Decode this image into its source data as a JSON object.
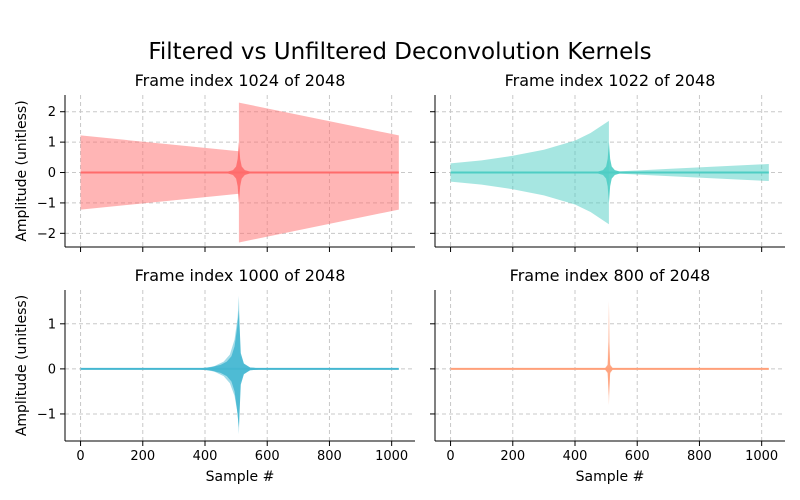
{
  "figure": {
    "title": "Filtered vs Unfiltered Deconvolution Kernels"
  },
  "chart_data": [
    {
      "type": "area",
      "title": "Frame index 1024 of 2048",
      "xlabel": "",
      "ylabel": "Amplitude (unitless)",
      "xlim": [
        -50,
        1075
      ],
      "ylim": [
        -2.45,
        2.55
      ],
      "xticks": [
        0,
        200,
        400,
        600,
        800,
        1000
      ],
      "yticks": [
        -2,
        -1,
        0,
        1,
        2
      ],
      "show_xticklabels": false,
      "show_yticklabels": true,
      "grid": true,
      "color": "#ff6b6b",
      "series": [
        {
          "role": "envelope",
          "x": [
            0,
            509,
            509,
            1023
          ],
          "upper": [
            1.22,
            0.7,
            2.3,
            1.22
          ],
          "lower": [
            -1.22,
            -0.7,
            -2.3,
            -1.22
          ]
        },
        {
          "role": "kernel",
          "x": [
            0,
            400,
            470,
            490,
            500,
            505,
            509,
            513,
            518,
            528,
            548,
            620,
            1023
          ],
          "amplitude": [
            0,
            0,
            0.02,
            0.08,
            0.2,
            0.45,
            1.0,
            0.45,
            0.2,
            0.08,
            0.02,
            0,
            0
          ]
        }
      ]
    },
    {
      "type": "area",
      "title": "Frame index 1022 of 2048",
      "xlabel": "",
      "ylabel": "",
      "xlim": [
        -50,
        1075
      ],
      "ylim": [
        -2.45,
        2.55
      ],
      "xticks": [
        0,
        200,
        400,
        600,
        800,
        1000
      ],
      "yticks": [
        -2,
        -1,
        0,
        1,
        2
      ],
      "show_xticklabels": false,
      "show_yticklabels": false,
      "grid": true,
      "color": "#4ecdc4",
      "series": [
        {
          "role": "envelope",
          "x": [
            0,
            100,
            200,
            300,
            400,
            450,
            509,
            509,
            700,
            1023
          ],
          "upper": [
            0.3,
            0.4,
            0.55,
            0.75,
            1.05,
            1.3,
            1.7,
            0.02,
            0.12,
            0.28
          ],
          "lower": [
            -0.3,
            -0.4,
            -0.55,
            -0.75,
            -1.05,
            -1.3,
            -1.7,
            -0.02,
            -0.12,
            -0.28
          ]
        },
        {
          "role": "kernel",
          "x": [
            0,
            400,
            470,
            490,
            500,
            505,
            509,
            513,
            518,
            528,
            548,
            620,
            1023
          ],
          "amplitude": [
            0,
            0,
            0.02,
            0.08,
            0.2,
            0.45,
            1.0,
            0.45,
            0.2,
            0.08,
            0.02,
            0,
            0
          ]
        }
      ]
    },
    {
      "type": "area",
      "title": "Frame index 1000 of 2048",
      "xlabel": "Sample #",
      "ylabel": "Amplitude (unitless)",
      "xlim": [
        -50,
        1075
      ],
      "ylim": [
        -1.6,
        1.75
      ],
      "xticks": [
        0,
        200,
        400,
        600,
        800,
        1000
      ],
      "yticks": [
        -1,
        0,
        1
      ],
      "show_xticklabels": true,
      "show_yticklabels": true,
      "grid": true,
      "color": "#45b7d1",
      "series": [
        {
          "role": "envelope",
          "x": [
            0,
            350,
            400,
            430,
            460,
            480,
            495,
            505,
            509,
            513,
            525,
            545,
            600,
            1023
          ],
          "upper": [
            0,
            0,
            0.02,
            0.06,
            0.16,
            0.32,
            0.65,
            1.15,
            1.62,
            0.3,
            0.1,
            0.03,
            0,
            0
          ],
          "lower": [
            0,
            0,
            -0.02,
            -0.06,
            -0.16,
            -0.32,
            -0.6,
            -1.0,
            -1.45,
            -0.3,
            -0.1,
            -0.03,
            0,
            0
          ]
        },
        {
          "role": "kernel",
          "x": [
            0,
            380,
            420,
            450,
            470,
            485,
            495,
            503,
            509,
            515,
            525,
            545,
            600,
            1023
          ],
          "amplitude": [
            0,
            0.01,
            0.04,
            0.09,
            0.16,
            0.28,
            0.5,
            0.9,
            1.3,
            0.35,
            0.12,
            0.03,
            0,
            0
          ]
        }
      ]
    },
    {
      "type": "area",
      "title": "Frame index 800 of 2048",
      "xlabel": "Sample #",
      "ylabel": "",
      "xlim": [
        -50,
        1075
      ],
      "ylim": [
        -1.6,
        1.75
      ],
      "xticks": [
        0,
        200,
        400,
        600,
        800,
        1000
      ],
      "yticks": [
        -1,
        0,
        1
      ],
      "show_xticklabels": true,
      "show_yticklabels": false,
      "grid": true,
      "color": "#ffa07a",
      "series": [
        {
          "role": "envelope",
          "x": [
            0,
            495,
            505,
            509,
            513,
            523,
            1023
          ],
          "upper": [
            0,
            0,
            0.1,
            1.5,
            0.1,
            0,
            0
          ],
          "lower": [
            0,
            0,
            -0.1,
            -0.8,
            -0.1,
            0,
            0
          ]
        },
        {
          "role": "kernel",
          "x": [
            0,
            495,
            505,
            509,
            513,
            523,
            1023
          ],
          "amplitude": [
            0,
            0,
            0.08,
            0.6,
            0.08,
            0,
            0
          ]
        }
      ]
    }
  ]
}
